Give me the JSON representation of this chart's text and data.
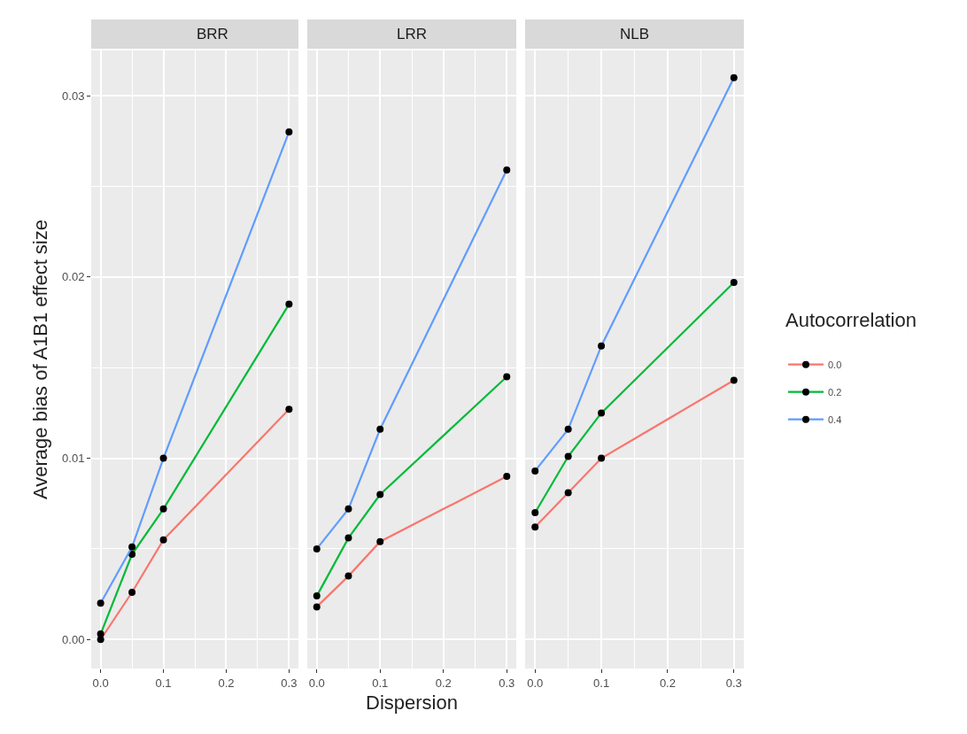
{
  "chart_data": [
    {
      "type": "line",
      "title": "BRR",
      "ylabel": "Average bias of A1B1 effect size",
      "x": [
        0,
        0.05,
        0.1,
        0.3
      ],
      "marker": "circle",
      "grid": true,
      "tick_labels": "xy",
      "xlim": [
        -0.015,
        0.315
      ],
      "xticks": [
        {
          "value": 0,
          "label": "0.0"
        },
        {
          "value": 0.1,
          "label": "0.1"
        },
        {
          "value": 0.2,
          "label": "0.2"
        },
        {
          "value": 0.3,
          "label": "0.3"
        }
      ],
      "ylim": [
        -0.0016,
        0.0325
      ],
      "yticks": [
        {
          "value": 0,
          "label": "0.00"
        },
        {
          "value": 0.01,
          "label": "0.01"
        },
        {
          "value": 0.02,
          "label": "0.02"
        },
        {
          "value": 0.03,
          "label": "0.03"
        }
      ],
      "series": [
        {
          "color": "#f8766d",
          "values": [
            0.0,
            0.0026,
            0.0055,
            0.0127
          ]
        },
        {
          "color": "#00ba38",
          "values": [
            0.0003,
            0.0047,
            0.0072,
            0.0185
          ]
        },
        {
          "color": "#619cff",
          "values": [
            0.002,
            0.0051,
            0.01,
            0.028
          ]
        }
      ]
    },
    {
      "type": "line",
      "title": "LRR",
      "xlabel": "Dispersion",
      "x": [
        0,
        0.05,
        0.1,
        0.3
      ],
      "marker": "circle",
      "grid": true,
      "tick_labels": "x",
      "xlim": [
        -0.015,
        0.315
      ],
      "xticks": [
        {
          "value": 0,
          "label": "0.0"
        },
        {
          "value": 0.1,
          "label": "0.1"
        },
        {
          "value": 0.2,
          "label": "0.2"
        },
        {
          "value": 0.3,
          "label": "0.3"
        }
      ],
      "ylim": [
        -0.0016,
        0.0325
      ],
      "yticks": [
        {
          "value": 0,
          "label": null
        },
        {
          "value": 0.01,
          "label": null
        },
        {
          "value": 0.02,
          "label": null
        },
        {
          "value": 0.03,
          "label": null
        }
      ],
      "series": [
        {
          "color": "#f8766d",
          "values": [
            0.0018,
            0.0035,
            0.0054,
            0.009
          ]
        },
        {
          "color": "#00ba38",
          "values": [
            0.0024,
            0.0056,
            0.008,
            0.0145
          ]
        },
        {
          "color": "#619cff",
          "values": [
            0.005,
            0.0072,
            0.0116,
            0.0259
          ]
        }
      ]
    },
    {
      "type": "line",
      "title": "NLB",
      "legend_title": "Autocorrelation",
      "x": [
        0,
        0.05,
        0.1,
        0.3
      ],
      "marker": "circle",
      "grid": true,
      "legend": "right",
      "tick_labels": "x",
      "xlim": [
        -0.015,
        0.315
      ],
      "xticks": [
        {
          "value": 0,
          "label": "0.0"
        },
        {
          "value": 0.1,
          "label": "0.1"
        },
        {
          "value": 0.2,
          "label": "0.2"
        },
        {
          "value": 0.3,
          "label": "0.3"
        }
      ],
      "ylim": [
        -0.0016,
        0.0325
      ],
      "yticks": [
        {
          "value": 0,
          "label": null
        },
        {
          "value": 0.01,
          "label": null
        },
        {
          "value": 0.02,
          "label": null
        },
        {
          "value": 0.03,
          "label": null
        }
      ],
      "series": [
        {
          "name": "0.0",
          "color": "#f8766d",
          "values": [
            0.0062,
            0.0081,
            0.01,
            0.0143
          ]
        },
        {
          "name": "0.2",
          "color": "#00ba38",
          "values": [
            0.007,
            0.0101,
            0.0125,
            0.0197
          ]
        },
        {
          "name": "0.4",
          "color": "#619cff",
          "values": [
            0.0093,
            0.0116,
            0.0162,
            0.031
          ]
        }
      ]
    }
  ]
}
